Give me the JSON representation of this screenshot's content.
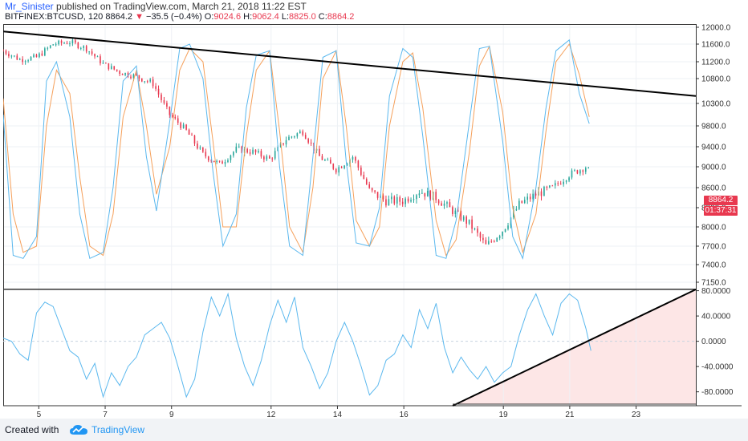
{
  "header": {
    "author": "Mr_Sinister",
    "published_text": "published on TradingView.com, March 21, 2018 11:22 EST",
    "symbol": "BITFINEX:BTCUSD",
    "interval": "120",
    "last": "8864.2",
    "change": "−35.5 (−0.4%)",
    "o_label": "O:",
    "o_val": "9024.6",
    "h_label": "H:",
    "h_val": "9062.4",
    "l_label": "L:",
    "l_val": "8825.0",
    "c_label": "C:",
    "c_val": "8864.2"
  },
  "badges": {
    "price": "8864.2",
    "timer": "01:37:31",
    "color": "#e8384f"
  },
  "footer": {
    "created_with": "Created with",
    "brand": "TradingView"
  },
  "colors": {
    "bull": "#26a69a",
    "bear": "#e8384f",
    "k_line": "#5bb8ee",
    "d_line": "#f5a05b",
    "oscillator": "#5bb8ee",
    "trend": "#000000",
    "shade": "#fde6e6"
  },
  "chart_data": [
    {
      "type": "line",
      "panel": "price",
      "symbol": "BITFINEX:BTCUSD",
      "y_ticks": [
        "12000.0",
        "11600.0",
        "11200.0",
        "10800.0",
        "10300.0",
        "9800.0",
        "9400.0",
        "9000.0",
        "8600.0",
        "8300.0",
        "8000.0",
        "7700.0",
        "7400.0",
        "7150.0"
      ],
      "ylim": [
        7050,
        12050
      ],
      "x_ticks": [
        "5",
        "7",
        "9",
        "12",
        "14",
        "16",
        "19",
        "21",
        "23"
      ],
      "close_series": {
        "name": "",
        "x": [
          4.0,
          4.5,
          5.0,
          5.5,
          6.0,
          6.5,
          7.0,
          7.5,
          8.0,
          8.5,
          9.0,
          9.5,
          10.0,
          10.5,
          11.0,
          11.5,
          12.0,
          12.5,
          13.0,
          13.5,
          14.0,
          14.5,
          15.0,
          15.5,
          16.0,
          16.5,
          17.0,
          17.5,
          18.0,
          18.5,
          19.0,
          19.5,
          20.0,
          20.5,
          21.0,
          21.5,
          21.65
        ],
        "values": [
          11450,
          11250,
          11300,
          11600,
          11650,
          11500,
          11150,
          10950,
          10850,
          10700,
          10050,
          9700,
          9250,
          9050,
          9350,
          9300,
          9150,
          9550,
          9700,
          9200,
          8950,
          9200,
          8550,
          8400,
          8400,
          8550,
          8450,
          8250,
          8050,
          7700,
          7950,
          8350,
          8500,
          8600,
          8850,
          9000,
          8864
        ]
      },
      "stoch_k": {
        "x": [
          4.0,
          4.3,
          4.6,
          5.0,
          5.3,
          5.6,
          6.0,
          6.3,
          6.6,
          7.0,
          7.3,
          7.6,
          8.0,
          8.3,
          8.6,
          9.0,
          9.3,
          9.6,
          10.0,
          10.3,
          10.6,
          11.0,
          11.3,
          11.6,
          12.0,
          12.3,
          12.6,
          13.0,
          13.3,
          13.6,
          14.0,
          14.3,
          14.6,
          15.0,
          15.3,
          15.6,
          16.0,
          16.3,
          16.6,
          17.0,
          17.3,
          17.6,
          18.0,
          18.3,
          18.6,
          19.0,
          19.3,
          19.6,
          20.0,
          20.3,
          20.6,
          21.0,
          21.3,
          21.6
        ],
        "values": [
          10050,
          7550,
          7500,
          7850,
          10750,
          11200,
          10000,
          8200,
          7500,
          7600,
          8600,
          10750,
          11100,
          9200,
          8250,
          9900,
          11500,
          11600,
          10800,
          8900,
          7700,
          8200,
          10200,
          11350,
          11450,
          9000,
          7700,
          7550,
          9200,
          11300,
          11450,
          9100,
          7750,
          7700,
          8300,
          10450,
          11500,
          11300,
          9600,
          7550,
          7500,
          8100,
          9900,
          11500,
          11550,
          9500,
          7850,
          7500,
          8600,
          10200,
          11450,
          11700,
          10500,
          9850
        ]
      },
      "stoch_d": {
        "x": [
          4.0,
          4.3,
          4.6,
          5.0,
          5.3,
          5.6,
          6.0,
          6.3,
          6.6,
          7.0,
          7.3,
          7.6,
          8.0,
          8.3,
          8.6,
          9.0,
          9.3,
          9.6,
          10.0,
          10.3,
          10.6,
          11.0,
          11.3,
          11.6,
          12.0,
          12.3,
          12.6,
          13.0,
          13.3,
          13.6,
          14.0,
          14.3,
          14.6,
          15.0,
          15.3,
          15.6,
          16.0,
          16.3,
          16.6,
          17.0,
          17.3,
          17.6,
          18.0,
          18.3,
          18.6,
          19.0,
          19.3,
          19.6,
          20.0,
          20.3,
          20.6,
          21.0,
          21.3,
          21.6
        ],
        "values": [
          10400,
          8200,
          7600,
          7700,
          9800,
          11000,
          10500,
          8800,
          7700,
          7550,
          8200,
          10000,
          11000,
          9800,
          8500,
          9400,
          11000,
          11500,
          11200,
          9500,
          8000,
          8000,
          9600,
          11000,
          11450,
          9700,
          8000,
          7600,
          8600,
          10800,
          11450,
          9800,
          8100,
          7700,
          8000,
          9800,
          11200,
          11400,
          10200,
          8100,
          7550,
          7800,
          9300,
          11100,
          11550,
          10100,
          8300,
          7600,
          8200,
          9700,
          11200,
          11600,
          10900,
          10000
        ]
      },
      "trendline": {
        "x": [
          4.0,
          24.8
        ],
        "values": [
          11900,
          10450
        ]
      }
    },
    {
      "type": "line",
      "panel": "oscillator",
      "y_ticks": [
        "80.0000",
        "40.0000",
        "0.0000",
        "-40.0000",
        "-80.0000"
      ],
      "ylim": [
        -102,
        82
      ],
      "zero_line": true,
      "series": [
        {
          "name": "",
          "x": [
            4.0,
            4.25,
            4.5,
            4.75,
            5.0,
            5.25,
            5.5,
            5.75,
            6.0,
            6.25,
            6.5,
            6.75,
            7.0,
            7.25,
            7.5,
            7.75,
            8.0,
            8.25,
            8.5,
            8.75,
            9.0,
            9.25,
            9.5,
            9.75,
            10.0,
            10.25,
            10.5,
            10.75,
            11.0,
            11.25,
            11.5,
            11.75,
            12.0,
            12.25,
            12.5,
            12.75,
            13.0,
            13.25,
            13.5,
            13.75,
            14.0,
            14.25,
            14.5,
            14.75,
            15.0,
            15.25,
            15.5,
            15.75,
            16.0,
            16.25,
            16.5,
            16.75,
            17.0,
            17.25,
            17.5,
            17.75,
            18.0,
            18.25,
            18.5,
            18.75,
            19.0,
            19.25,
            19.5,
            19.75,
            20.0,
            20.25,
            20.5,
            20.75,
            21.0,
            21.25,
            21.5,
            21.65
          ],
          "values": [
            5,
            0,
            -20,
            -30,
            45,
            62,
            55,
            20,
            -15,
            -25,
            -60,
            -35,
            -88,
            -50,
            -70,
            -40,
            -25,
            10,
            20,
            30,
            5,
            -40,
            -88,
            -60,
            15,
            70,
            40,
            75,
            5,
            -40,
            -70,
            -30,
            25,
            65,
            30,
            70,
            -10,
            -40,
            -75,
            -50,
            0,
            30,
            0,
            -40,
            -85,
            -70,
            -30,
            -20,
            10,
            -10,
            50,
            20,
            60,
            -10,
            -50,
            -25,
            -45,
            -60,
            -40,
            -65,
            -50,
            -40,
            10,
            50,
            75,
            40,
            10,
            60,
            75,
            65,
            20,
            -15
          ]
        }
      ],
      "trendline": {
        "x": [
          17.5,
          24.8
        ],
        "values": [
          -102,
          82
        ]
      }
    }
  ]
}
